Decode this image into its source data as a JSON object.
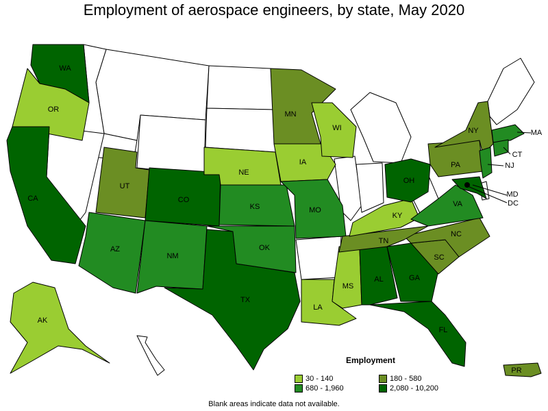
{
  "title": "Employment of aerospace engineers, by state, May 2020",
  "legend": {
    "title": "Employment",
    "items": [
      {
        "label": "30 - 140",
        "color": "#9acd32"
      },
      {
        "label": "180 - 580",
        "color": "#6b8e23"
      },
      {
        "label": "680 - 1,960",
        "color": "#228b22"
      },
      {
        "label": "2,080 - 10,200",
        "color": "#006400"
      }
    ]
  },
  "note": "Blank areas indicate data not available.",
  "state_labels": [
    "WA",
    "OR",
    "CA",
    "AK",
    "UT",
    "CO",
    "AZ",
    "NM",
    "TX",
    "OK",
    "KS",
    "NE",
    "MN",
    "IA",
    "MO",
    "WI",
    "LA",
    "MS",
    "AL",
    "GA",
    "FL",
    "SC",
    "NC",
    "TN",
    "KY",
    "VA",
    "OH",
    "PA",
    "NY",
    "MA",
    "CT",
    "NJ",
    "MD",
    "DC",
    "PR"
  ],
  "colors": {
    "tier1": "#9acd32",
    "tier2": "#6b8e23",
    "tier3": "#228b22",
    "tier4": "#006400",
    "blank": "#ffffff"
  }
}
